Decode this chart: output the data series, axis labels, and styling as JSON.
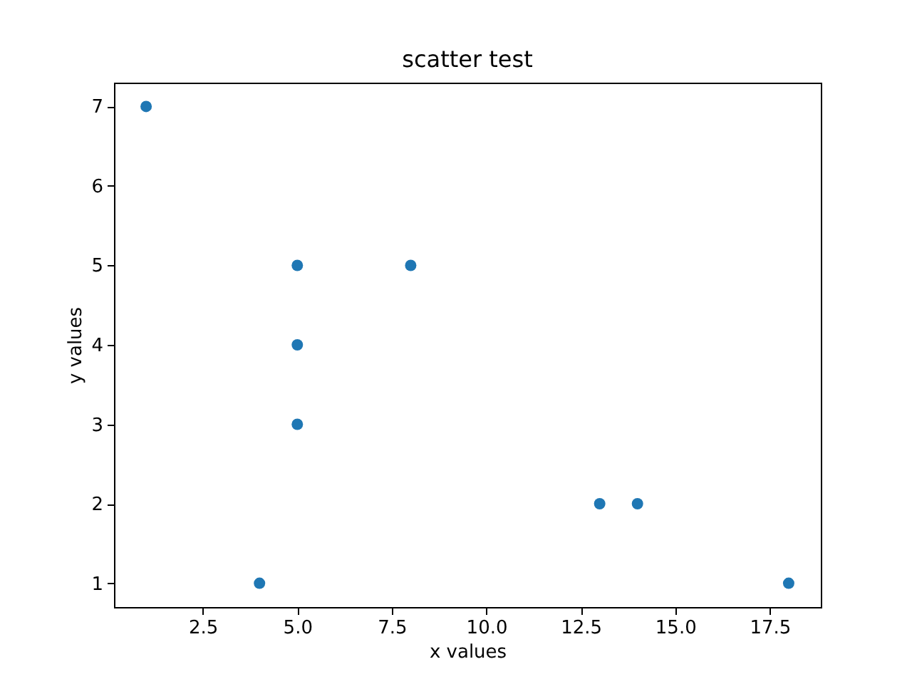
{
  "chart_data": {
    "type": "scatter",
    "title": "scatter test",
    "xlabel": "x values",
    "ylabel": "y values",
    "x": [
      1,
      4,
      5,
      5,
      5,
      8,
      13,
      14,
      18
    ],
    "values": [
      7,
      1,
      5,
      4,
      3,
      5,
      2,
      2,
      1
    ],
    "color": "#1f77b4",
    "marker": "circle",
    "xlim": [
      0.15,
      18.85
    ],
    "ylim": [
      0.7,
      7.3
    ],
    "xticks": [
      {
        "value": 2.5,
        "label": "2.5"
      },
      {
        "value": 5,
        "label": "5.0"
      },
      {
        "value": 7.5,
        "label": "7.5"
      },
      {
        "value": 10,
        "label": "10.0"
      },
      {
        "value": 12.5,
        "label": "12.5"
      },
      {
        "value": 15,
        "label": "15.0"
      },
      {
        "value": 17.5,
        "label": "17.5"
      }
    ],
    "yticks": [
      1,
      2,
      3,
      4,
      5,
      6,
      7
    ]
  }
}
